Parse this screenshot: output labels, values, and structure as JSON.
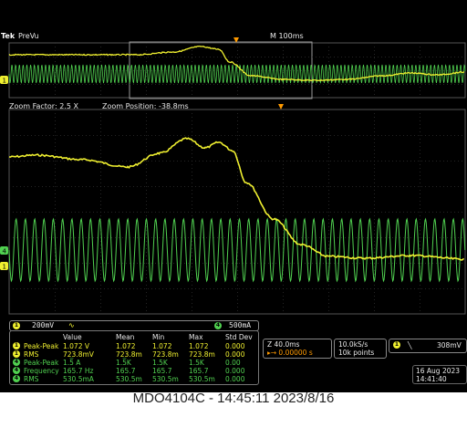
{
  "header": {
    "brand": "Tek",
    "mode": "PreVu",
    "main_timebase": "M 100ms"
  },
  "zoom": {
    "factor_label": "Zoom Factor: 2.5 X",
    "position_label": "Zoom Position: -38.8ms"
  },
  "channels": {
    "ch1": {
      "number": "1",
      "scale": "200mV",
      "coupling_icon": "bandwidth-icon",
      "color": "#f0f030"
    },
    "ch4": {
      "number": "4",
      "scale": "500mA",
      "color": "#50d050"
    }
  },
  "measurements": {
    "headers": [
      "Value",
      "Mean",
      "Min",
      "Max",
      "Std Dev"
    ],
    "rows": [
      {
        "ch": "1",
        "name": "Peak-Peak",
        "value": "1.072 V",
        "mean": "1.072",
        "min": "1.072",
        "max": "1.072",
        "std": "0.000"
      },
      {
        "ch": "1",
        "name": "RMS",
        "value": "723.8mV",
        "mean": "723.8m",
        "min": "723.8m",
        "max": "723.8m",
        "std": "0.000"
      },
      {
        "ch": "4",
        "name": "Peak-Peak",
        "value": "1.5̅ A",
        "mean": "1.5̅K",
        "min": "1.5K",
        "max": "1.5K",
        "std": "0.00"
      },
      {
        "ch": "4",
        "name": "Frequency",
        "value": "165.7 Hz",
        "mean": "165.7",
        "min": "165.7",
        "max": "165.7",
        "std": "0.000"
      },
      {
        "ch": "4",
        "name": "RMS",
        "value": "530.5mA",
        "mean": "530.5m",
        "min": "530.5m",
        "max": "530.5m",
        "std": "0.000"
      }
    ]
  },
  "timebase": {
    "zoom_scale": "Z 40.0ms",
    "position": "▸→ 0.00000 s"
  },
  "sampling": {
    "rate": "10.0kS/s",
    "record": "10k points"
  },
  "trigger": {
    "channel": "1",
    "slope": "╲",
    "level": "308mV"
  },
  "datetime": {
    "date": "16 Aug 2023",
    "time": "14:41:40"
  },
  "caption": "MDO4104C - 14:45:11   2023/8/16"
}
